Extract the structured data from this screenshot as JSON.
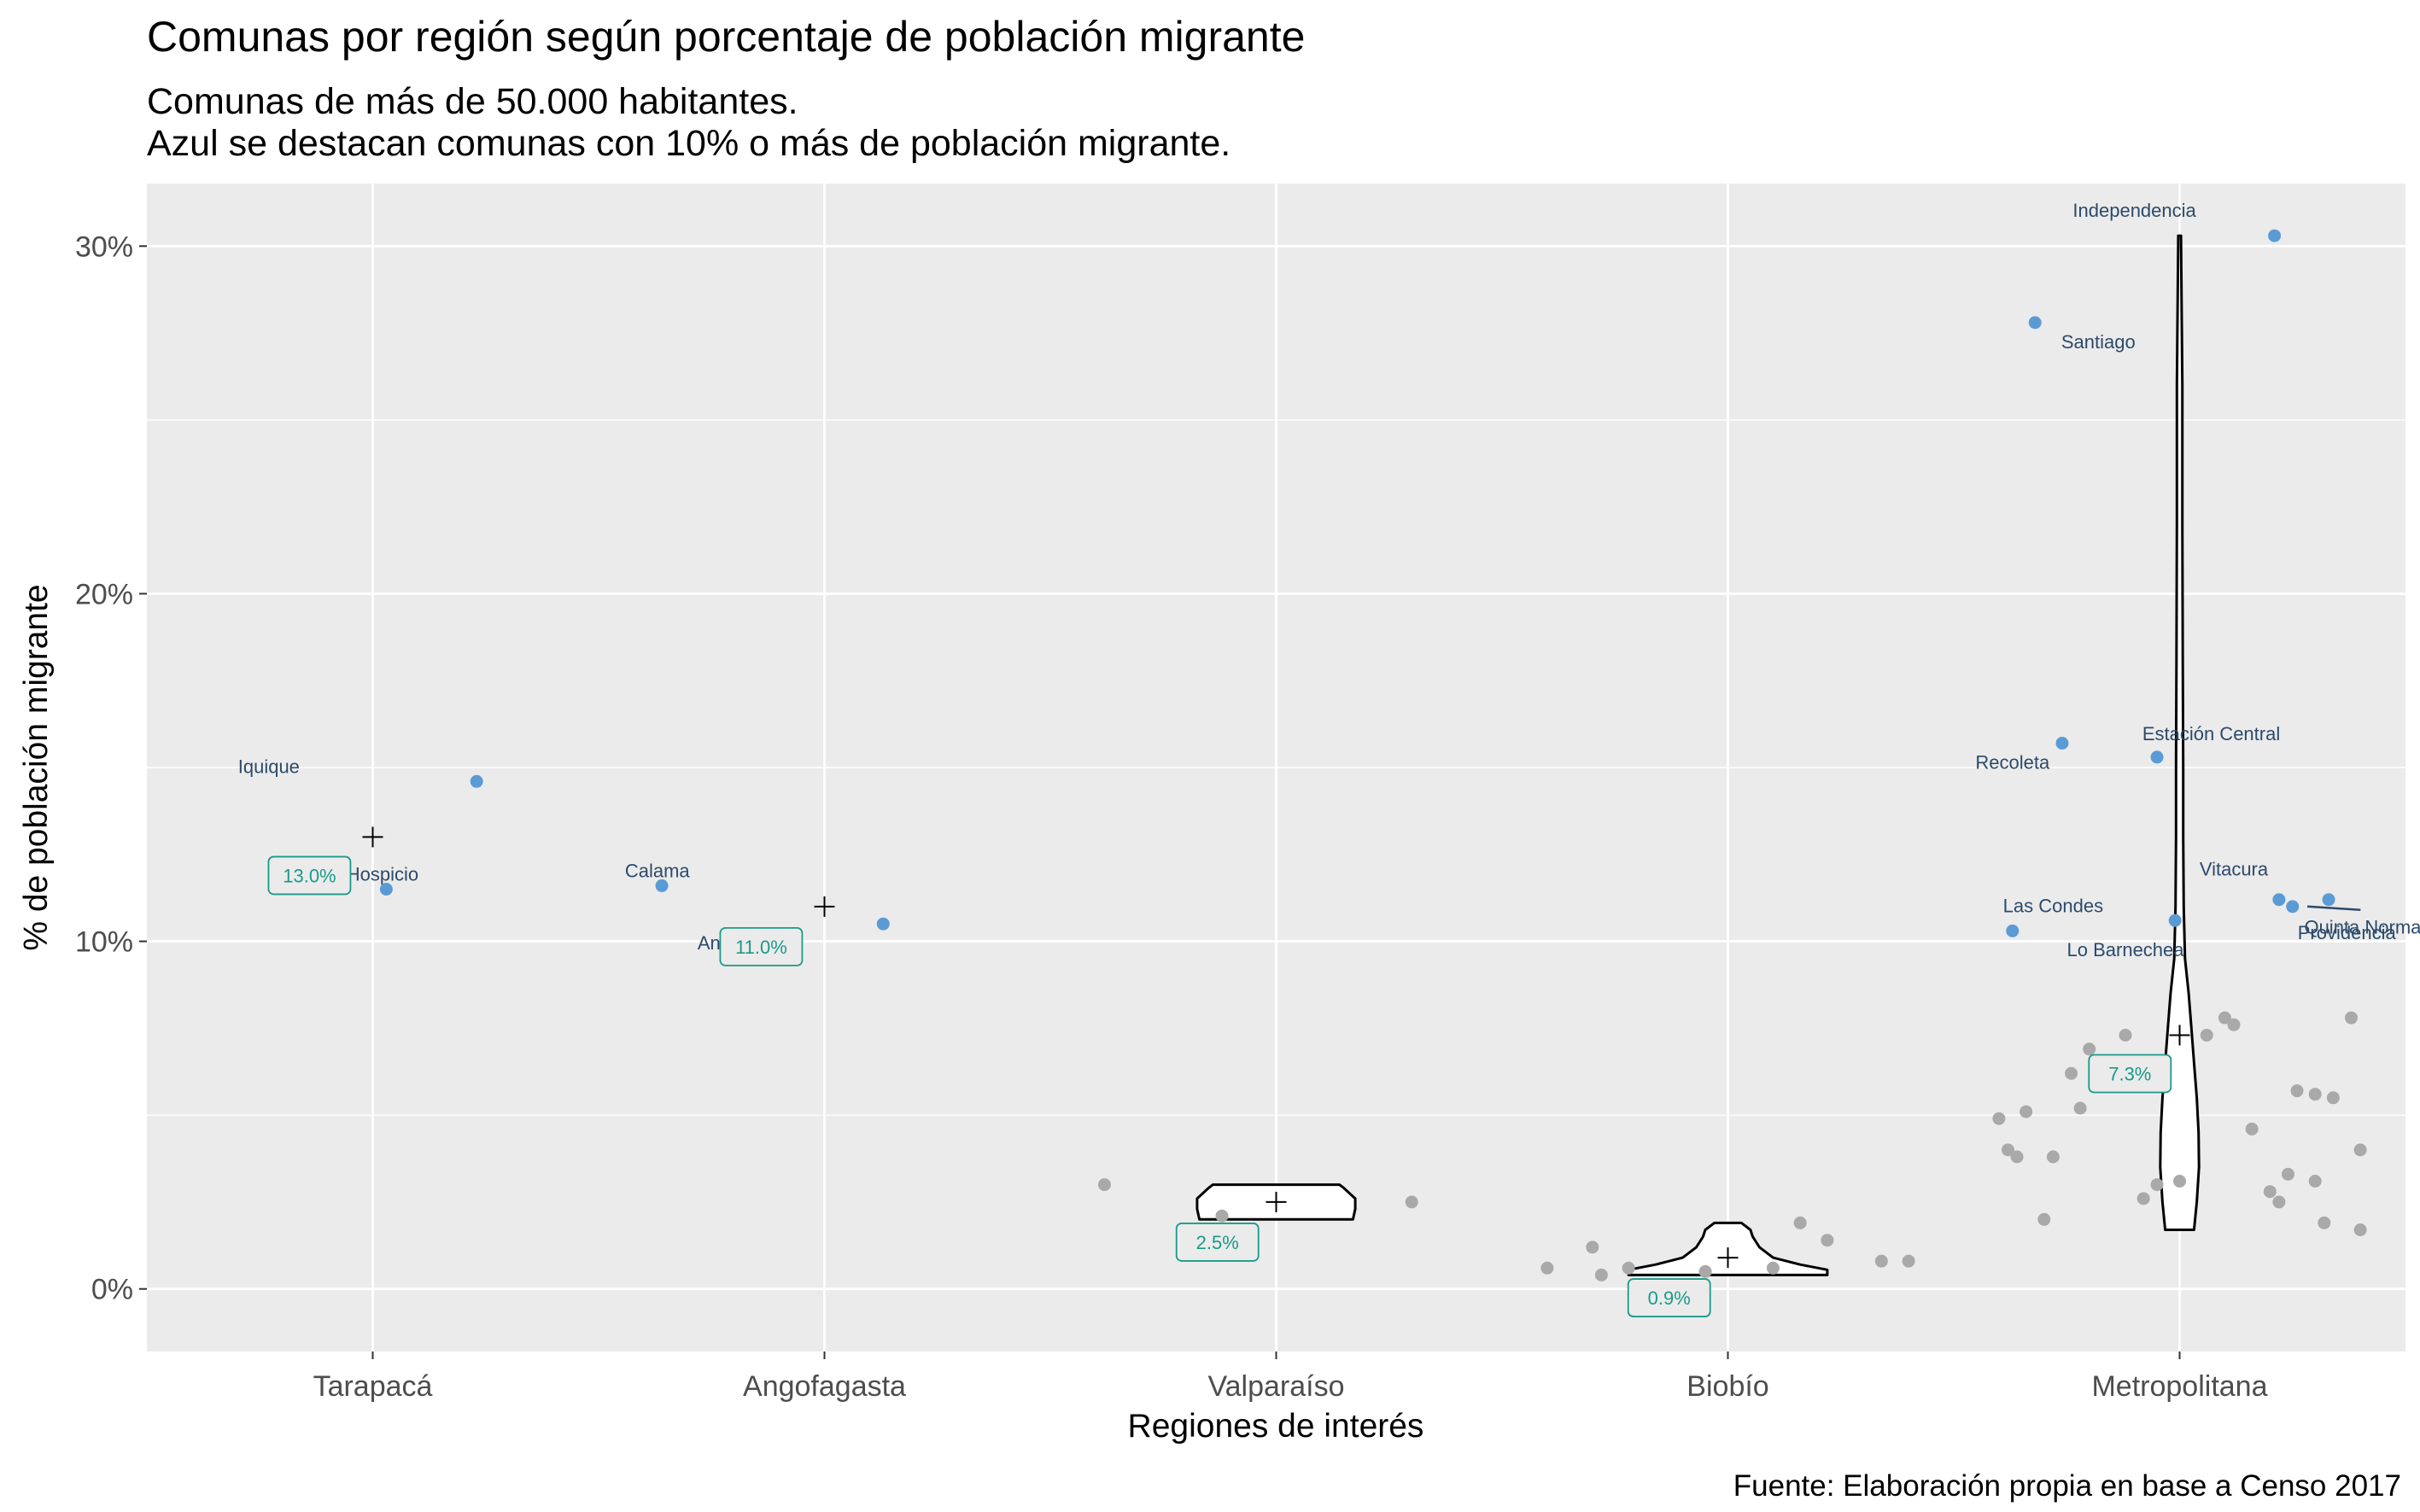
{
  "header": {
    "title": "Comunas por región según porcentaje de población migrante",
    "subtitle_line1": "Comunas de más de 50.000 habitantes.",
    "subtitle_line2": "Azul se destacan comunas con 10% o más de población migrante."
  },
  "caption": "Fuente: Elaboración propia en base a Censo 2017",
  "colors": {
    "panel": "#ebebeb",
    "grid": "#ffffff",
    "highlight": "#5b9bd5",
    "other": "#a9a9a9",
    "label": "#2c4a6b",
    "mean_label": "#1a9a8a"
  },
  "chart_data": {
    "type": "violin+scatter",
    "xlabel": "Regiones de interés",
    "ylabel": "% de población migrante",
    "ylim": [
      -1.8,
      31.8
    ],
    "yticks": [
      0,
      10,
      20,
      30
    ],
    "ytick_labels": [
      "0%",
      "10%",
      "20%",
      "30%"
    ],
    "categories": [
      "Tarapacá",
      "Angofagasta",
      "Valparaíso",
      "Biobío",
      "Metropolitana"
    ],
    "means": [
      {
        "region": "Tarapacá",
        "value": 13.0,
        "label": "13.0%"
      },
      {
        "region": "Angofagasta",
        "value": 11.0,
        "label": "11.0%"
      },
      {
        "region": "Valparaíso",
        "value": 2.5,
        "label": "2.5%"
      },
      {
        "region": "Biobío",
        "value": 0.9,
        "label": "0.9%"
      },
      {
        "region": "Metropolitana",
        "value": 7.3,
        "label": "7.3%"
      }
    ],
    "highlighted_communes": [
      {
        "name": "Iquique",
        "region": "Tarapacá",
        "value": 14.6
      },
      {
        "name": "Alto Hospicio",
        "region": "Tarapacá",
        "value": 11.5
      },
      {
        "name": "Calama",
        "region": "Angofagasta",
        "value": 11.6
      },
      {
        "name": "Antofagasta",
        "region": "Angofagasta",
        "value": 10.5
      },
      {
        "name": "Independencia",
        "region": "Metropolitana",
        "value": 30.3
      },
      {
        "name": "Santiago",
        "region": "Metropolitana",
        "value": 27.8
      },
      {
        "name": "Recoleta",
        "region": "Metropolitana",
        "value": 15.7
      },
      {
        "name": "Estación Central",
        "region": "Metropolitana",
        "value": 15.3
      },
      {
        "name": "Las Condes",
        "region": "Metropolitana",
        "value": 10.3
      },
      {
        "name": "Lo Barnechea",
        "region": "Metropolitana",
        "value": 10.6
      },
      {
        "name": "Vitacura",
        "region": "Metropolitana",
        "value": 11.2
      },
      {
        "name": "Providencia",
        "region": "Metropolitana",
        "value": 11.0
      },
      {
        "name": "Quinta Normal",
        "region": "Metropolitana",
        "value": 11.2
      }
    ],
    "other_communes": [
      {
        "region": "Valparaíso",
        "values": [
          3.0,
          2.5,
          2.1
        ]
      },
      {
        "region": "Biobío",
        "values": [
          0.8,
          1.2,
          0.6,
          0.6,
          0.8,
          0.5,
          1.4,
          0.6,
          1.9,
          0.4
        ]
      },
      {
        "region": "Metropolitana",
        "values": [
          7.3,
          7.8,
          5.9,
          5.7,
          5.1,
          3.1,
          2.8,
          2.6,
          1.9,
          6.2,
          7.6,
          3.8,
          3.3,
          4.0,
          6.9,
          5.6,
          4.0,
          3.1,
          7.3,
          1.7,
          2.0,
          7.8,
          5.2,
          5.5,
          3.0,
          2.5,
          4.9,
          4.6,
          3.8
        ]
      }
    ],
    "violins": [
      {
        "region": "Valparaíso",
        "range": [
          2.0,
          3.0
        ]
      },
      {
        "region": "Biobío",
        "range": [
          0.4,
          1.9
        ]
      },
      {
        "region": "Metropolitana",
        "range": [
          1.7,
          30.3
        ]
      }
    ],
    "grid": true
  }
}
